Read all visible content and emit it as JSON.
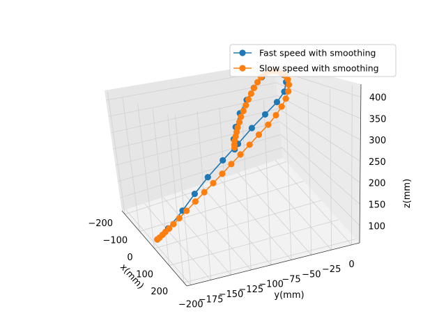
{
  "chart_data": {
    "type": "line",
    "projection": "3d",
    "xlabel": "x(mm)",
    "ylabel": "y(mm)",
    "zlabel": "z(mm)",
    "x_ticks": [
      "−200",
      "−100",
      "0",
      "100",
      "200"
    ],
    "y_ticks": [
      "−200",
      "−175",
      "−150",
      "−125",
      "−100",
      "−75",
      "−50",
      "−25",
      "0"
    ],
    "z_ticks": [
      "100",
      "150",
      "200",
      "250",
      "300",
      "350",
      "400"
    ],
    "xlim": [
      -220,
      220
    ],
    "ylim": [
      -205,
      10
    ],
    "zlim": [
      60,
      430
    ],
    "legend_position": "top-right",
    "grid": true,
    "series": [
      {
        "name": "Fast speed with smoothing",
        "color": "#1f77b4",
        "marker": "circle",
        "points": [
          [
            0,
            -200,
            80
          ],
          [
            0,
            -185,
            100
          ],
          [
            0,
            -165,
            135
          ],
          [
            0,
            -148,
            170
          ],
          [
            0,
            -130,
            205
          ],
          [
            0,
            -110,
            240
          ],
          [
            0,
            -90,
            275
          ],
          [
            0,
            -72,
            310
          ],
          [
            0,
            -55,
            340
          ],
          [
            0,
            -40,
            368
          ],
          [
            -12,
            -28,
            390
          ],
          [
            -45,
            -18,
            408
          ],
          [
            -90,
            -10,
            418
          ],
          [
            -140,
            -6,
            420
          ],
          [
            -185,
            -5,
            410
          ],
          [
            -210,
            -10,
            385
          ],
          [
            -215,
            -20,
            350
          ],
          [
            -208,
            -32,
            315
          ],
          [
            -195,
            -45,
            280
          ],
          [
            -180,
            -55,
            245
          ],
          [
            -165,
            -62,
            215
          ],
          [
            -150,
            -65,
            190
          ]
        ]
      },
      {
        "name": "Slow speed with smoothing",
        "color": "#ff7f0e",
        "marker": "circle",
        "points": [
          [
            0,
            -200,
            80
          ],
          [
            0,
            -197,
            83
          ],
          [
            0,
            -193,
            88
          ],
          [
            0,
            -189,
            93
          ],
          [
            0,
            -184,
            99
          ],
          [
            0,
            -178,
            107
          ],
          [
            0,
            -170,
            118
          ],
          [
            0,
            -160,
            132
          ],
          [
            0,
            -148,
            150
          ],
          [
            0,
            -136,
            168
          ],
          [
            0,
            -124,
            186
          ],
          [
            0,
            -112,
            205
          ],
          [
            0,
            -100,
            225
          ],
          [
            0,
            -88,
            245
          ],
          [
            0,
            -76,
            266
          ],
          [
            0,
            -64,
            288
          ],
          [
            0,
            -52,
            310
          ],
          [
            0,
            -42,
            332
          ],
          [
            -3,
            -34,
            352
          ],
          [
            -10,
            -27,
            370
          ],
          [
            -22,
            -21,
            386
          ],
          [
            -40,
            -16,
            400
          ],
          [
            -62,
            -12,
            410
          ],
          [
            -88,
            -9,
            416
          ],
          [
            -118,
            -7,
            419
          ],
          [
            -150,
            -6,
            418
          ],
          [
            -178,
            -6,
            412
          ],
          [
            -198,
            -8,
            400
          ],
          [
            -210,
            -11,
            385
          ],
          [
            -214,
            -15,
            368
          ],
          [
            -214,
            -20,
            350
          ],
          [
            -211,
            -25,
            333
          ],
          [
            -207,
            -30,
            316
          ],
          [
            -202,
            -35,
            300
          ],
          [
            -196,
            -40,
            285
          ],
          [
            -190,
            -45,
            270
          ],
          [
            -184,
            -49,
            256
          ],
          [
            -178,
            -53,
            243
          ],
          [
            -172,
            -56,
            232
          ],
          [
            -166,
            -59,
            222
          ],
          [
            -160,
            -62,
            212
          ],
          [
            -154,
            -64,
            203
          ],
          [
            -150,
            -65,
            196
          ]
        ]
      }
    ]
  },
  "legend": {
    "items": [
      {
        "label": "Fast speed with smoothing",
        "color": "#1f77b4"
      },
      {
        "label": "Slow speed with smoothing",
        "color": "#ff7f0e"
      }
    ]
  }
}
